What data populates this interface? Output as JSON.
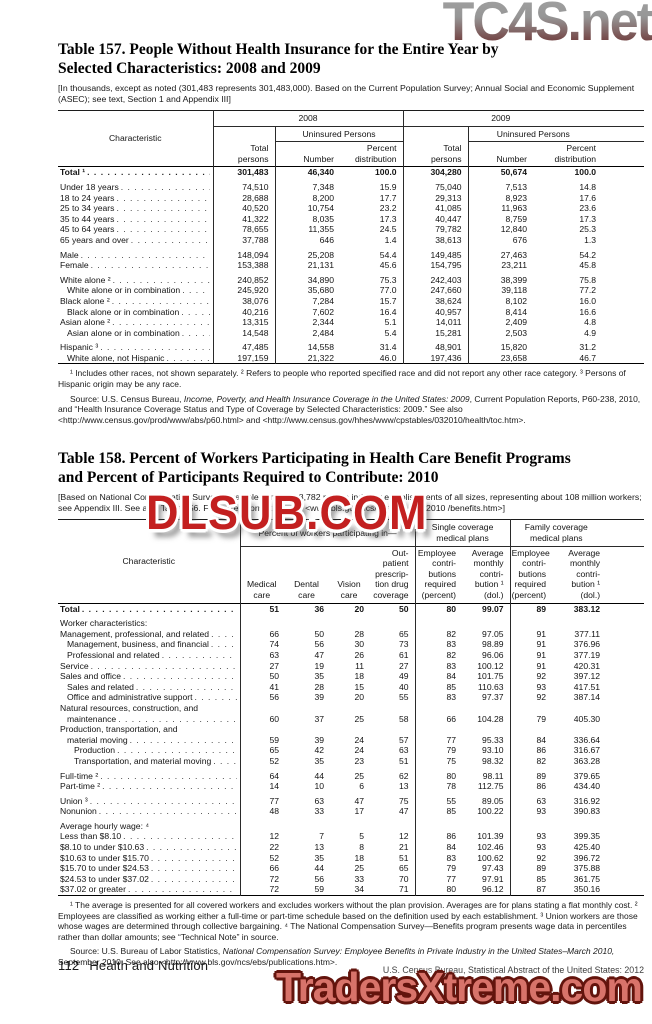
{
  "watermarks": {
    "top": "TC4S.net",
    "middle": "DLSUB.COM",
    "bottom": "TradersXtreme.com"
  },
  "page": {
    "number": "112",
    "section": "Health and Nutrition",
    "source_line": "U.S. Census Bureau, Statistical Abstract of the United States: 2012"
  },
  "table157": {
    "title_line1": "Table 157. People Without Health Insurance for the Entire Year by",
    "title_line2": "Selected Characteristics: 2008 and 2009",
    "note": "[In thousands, except as noted (301,483 represents 301,483,000). Based on the Current Population Survey; Annual Social and Economic Supplement (ASEC); see text, Section 1 and Appendix III]",
    "characteristic_header": "Characteristic",
    "col_groups": [
      "2008",
      "2009"
    ],
    "uninsured_header": "Uninsured Persons",
    "subcols": [
      "Total\npersons",
      "Number",
      "Percent\ndistribution",
      "Total\npersons",
      "Number",
      "Percent\ndistribution"
    ],
    "rows": [
      {
        "label": "Total ¹",
        "bold": true,
        "cells": [
          "301,483",
          "46,340",
          "100.0",
          "304,280",
          "50,674",
          "100.0"
        ]
      },
      {
        "label": "Under 18 years",
        "gap": true,
        "cells": [
          "74,510",
          "7,348",
          "15.9",
          "75,040",
          "7,513",
          "14.8"
        ]
      },
      {
        "label": "18 to 24 years",
        "cells": [
          "28,688",
          "8,200",
          "17.7",
          "29,313",
          "8,923",
          "17.6"
        ]
      },
      {
        "label": "25 to 34 years",
        "cells": [
          "40,520",
          "10,754",
          "23.2",
          "41,085",
          "11,963",
          "23.6"
        ]
      },
      {
        "label": "35 to 44 years",
        "cells": [
          "41,322",
          "8,035",
          "17.3",
          "40,447",
          "8,759",
          "17.3"
        ]
      },
      {
        "label": "45 to 64 years",
        "cells": [
          "78,655",
          "11,355",
          "24.5",
          "79,782",
          "12,840",
          "25.3"
        ]
      },
      {
        "label": "65 years and over",
        "cells": [
          "37,788",
          "646",
          "1.4",
          "38,613",
          "676",
          "1.3"
        ]
      },
      {
        "label": "Male",
        "gap": true,
        "cells": [
          "148,094",
          "25,208",
          "54.4",
          "149,485",
          "27,463",
          "54.2"
        ]
      },
      {
        "label": "Female",
        "cells": [
          "153,388",
          "21,131",
          "45.6",
          "154,795",
          "23,211",
          "45.8"
        ]
      },
      {
        "label": "White alone ²",
        "gap": true,
        "cells": [
          "240,852",
          "34,890",
          "75.3",
          "242,403",
          "38,399",
          "75.8"
        ]
      },
      {
        "label": "White alone or in combination",
        "indent": 1,
        "cells": [
          "245,920",
          "35,680",
          "77.0",
          "247,660",
          "39,118",
          "77.2"
        ]
      },
      {
        "label": "Black alone ²",
        "cells": [
          "38,076",
          "7,284",
          "15.7",
          "38,624",
          "8,102",
          "16.0"
        ]
      },
      {
        "label": "Black alone or in combination",
        "indent": 1,
        "cells": [
          "40,216",
          "7,602",
          "16.4",
          "40,957",
          "8,414",
          "16.6"
        ]
      },
      {
        "label": "Asian alone ²",
        "cells": [
          "13,315",
          "2,344",
          "5.1",
          "14,011",
          "2,409",
          "4.8"
        ]
      },
      {
        "label": "Asian alone or in combination",
        "indent": 1,
        "cells": [
          "14,548",
          "2,484",
          "5.4",
          "15,281",
          "2,503",
          "4.9"
        ]
      },
      {
        "label": "Hispanic ³",
        "gap": true,
        "cells": [
          "47,485",
          "14,558",
          "31.4",
          "48,901",
          "15,820",
          "31.2"
        ]
      },
      {
        "label": "White alone, not Hispanic",
        "indent": 1,
        "cells": [
          "197,159",
          "21,322",
          "46.0",
          "197,436",
          "23,658",
          "46.7"
        ]
      }
    ],
    "footnotes": "¹ Includes other races, not shown separately. ² Refers to people who reported specified race and did not report any other race category. ³ Persons of Hispanic origin may be any race.",
    "source_parts": [
      "Source: U.S. Census Bureau, ",
      "Income, Poverty, and Health Insurance Coverage in the United States: 2009",
      ", Current Population Reports, P60-238, 2010, and “Health Insurance Coverage Status and Type of Coverage by Selected Characteristics: 2009.” See also <http://www.census.gov/prod/www/abs/p60.html> and <http://www.census.gov/hhes/www/cpstables/032010/health/toc.htm>."
    ]
  },
  "table158": {
    "title_line1": "Table 158. Percent of Workers Participating in Health Care Benefit Programs",
    "title_line2": "and Percent of Participants Required to Contribute: 2010",
    "note": "[Based on National Compensation Survey, a sample survey of 8,782 private industry establishments of all sizes, representing about 108 million workers; see Appendix III. See also Table 656. For more information, see <www.bls.gov/ncs/ebs/benefits/2010 /benefits.htm>]",
    "characteristic_header": "Characteristic",
    "group_headers": [
      "Percent of workers participating in—",
      "Single coverage\nmedical plans",
      "Family coverage\nmedical plans"
    ],
    "subcols": [
      "Medical\ncare",
      "Dental\ncare",
      "Vision\ncare",
      "Out-\npatient\nprescrip-\ntion drug\ncoverage",
      "Employee\ncontri-\nbutions\nrequired\n(percent)",
      "Average\nmonthly\ncontri-\nbution ¹\n(dol.)",
      "Employee\ncontri-\nbutions\nrequired\n(percent)",
      "Average\nmonthly\ncontri-\nbution ¹\n(dol.)"
    ],
    "rows": [
      {
        "label": "Total",
        "bold": true,
        "cells": [
          "51",
          "36",
          "20",
          "50",
          "80",
          "99.07",
          "89",
          "383.12"
        ]
      },
      {
        "label": "Worker characteristics:",
        "section": true,
        "gap": true
      },
      {
        "label": "Management, professional, and related",
        "cells": [
          "66",
          "50",
          "28",
          "65",
          "82",
          "97.05",
          "91",
          "377.11"
        ]
      },
      {
        "label": "Management, business, and financial",
        "indent": 1,
        "cells": [
          "74",
          "56",
          "30",
          "73",
          "83",
          "98.89",
          "91",
          "376.96"
        ]
      },
      {
        "label": "Professional and related",
        "indent": 1,
        "cells": [
          "63",
          "47",
          "26",
          "61",
          "82",
          "96.06",
          "91",
          "377.19"
        ]
      },
      {
        "label": "Service",
        "cells": [
          "27",
          "19",
          "11",
          "27",
          "83",
          "100.12",
          "91",
          "420.31"
        ]
      },
      {
        "label": "Sales and office",
        "cells": [
          "50",
          "35",
          "18",
          "49",
          "84",
          "101.75",
          "92",
          "397.12"
        ]
      },
      {
        "label": "Sales and related",
        "indent": 1,
        "cells": [
          "41",
          "28",
          "15",
          "40",
          "85",
          "110.63",
          "93",
          "417.51"
        ]
      },
      {
        "label": "Office and administrative support",
        "indent": 1,
        "cells": [
          "56",
          "39",
          "20",
          "55",
          "83",
          "97.37",
          "92",
          "387.14"
        ]
      },
      {
        "label": "Natural resources, construction, and",
        "label2": "maintenance",
        "cells": [
          "60",
          "37",
          "25",
          "58",
          "66",
          "104.28",
          "79",
          "405.30"
        ]
      },
      {
        "label": "Production, transportation, and",
        "label2": "material moving",
        "cells": [
          "59",
          "39",
          "24",
          "57",
          "77",
          "95.33",
          "84",
          "336.64"
        ]
      },
      {
        "label": "Production",
        "indent": 2,
        "cells": [
          "65",
          "42",
          "24",
          "63",
          "79",
          "93.10",
          "86",
          "316.67"
        ]
      },
      {
        "label": "Transportation, and material moving",
        "indent": 2,
        "cells": [
          "52",
          "35",
          "23",
          "51",
          "75",
          "98.32",
          "82",
          "363.28"
        ]
      },
      {
        "label": "Full-time ²",
        "gap": true,
        "cells": [
          "64",
          "44",
          "25",
          "62",
          "80",
          "98.11",
          "89",
          "379.65"
        ]
      },
      {
        "label": "Part-time ²",
        "cells": [
          "14",
          "10",
          "6",
          "13",
          "78",
          "112.75",
          "86",
          "434.40"
        ]
      },
      {
        "label": "Union ³",
        "gap": true,
        "cells": [
          "77",
          "63",
          "47",
          "75",
          "55",
          "89.05",
          "63",
          "316.92"
        ]
      },
      {
        "label": "Nonunion",
        "cells": [
          "48",
          "33",
          "17",
          "47",
          "85",
          "100.22",
          "93",
          "390.83"
        ]
      },
      {
        "label": "Average hourly wage: ⁴",
        "section": true,
        "gap": true
      },
      {
        "label": "Less than $8.10",
        "cells": [
          "12",
          "7",
          "5",
          "12",
          "86",
          "101.39",
          "93",
          "399.35"
        ]
      },
      {
        "label": "$8.10 to under $10.63",
        "cells": [
          "22",
          "13",
          "8",
          "21",
          "84",
          "102.46",
          "93",
          "425.40"
        ]
      },
      {
        "label": "$10.63 to under $15.70",
        "cells": [
          "52",
          "35",
          "18",
          "51",
          "83",
          "100.62",
          "92",
          "396.72"
        ]
      },
      {
        "label": "$15.70 to under $24.53",
        "cells": [
          "66",
          "44",
          "25",
          "65",
          "79",
          "97.43",
          "89",
          "375.88"
        ]
      },
      {
        "label": "$24.53 to under $37.02",
        "cells": [
          "72",
          "56",
          "33",
          "70",
          "77",
          "97.91",
          "85",
          "361.75"
        ]
      },
      {
        "label": "$37.02 or greater",
        "cells": [
          "72",
          "59",
          "34",
          "71",
          "80",
          "96.12",
          "87",
          "350.16"
        ]
      }
    ],
    "footnotes": "¹ The average is presented for all covered workers and excludes workers without the plan provision. Averages are for plans stating a flat monthly cost. ² Employees are classified as working either a full-time or part-time schedule based on the definition used by each establishment. ³ Union workers are those whose wages are determined through collective bargaining. ⁴ The National Compensation Survey—Benefits program presents wage data in percentiles rather than dollar amounts; see “Technical Note” in source.",
    "source_parts": [
      "Source: U.S. Bureau of Labor Statistics, ",
      "National Compensation Survey: Employee Benefits in Private Industry in the United States–March 2010,",
      " September 2010. See also <http://www.bls.gov/ncs/ebs/publications.htm>."
    ]
  }
}
